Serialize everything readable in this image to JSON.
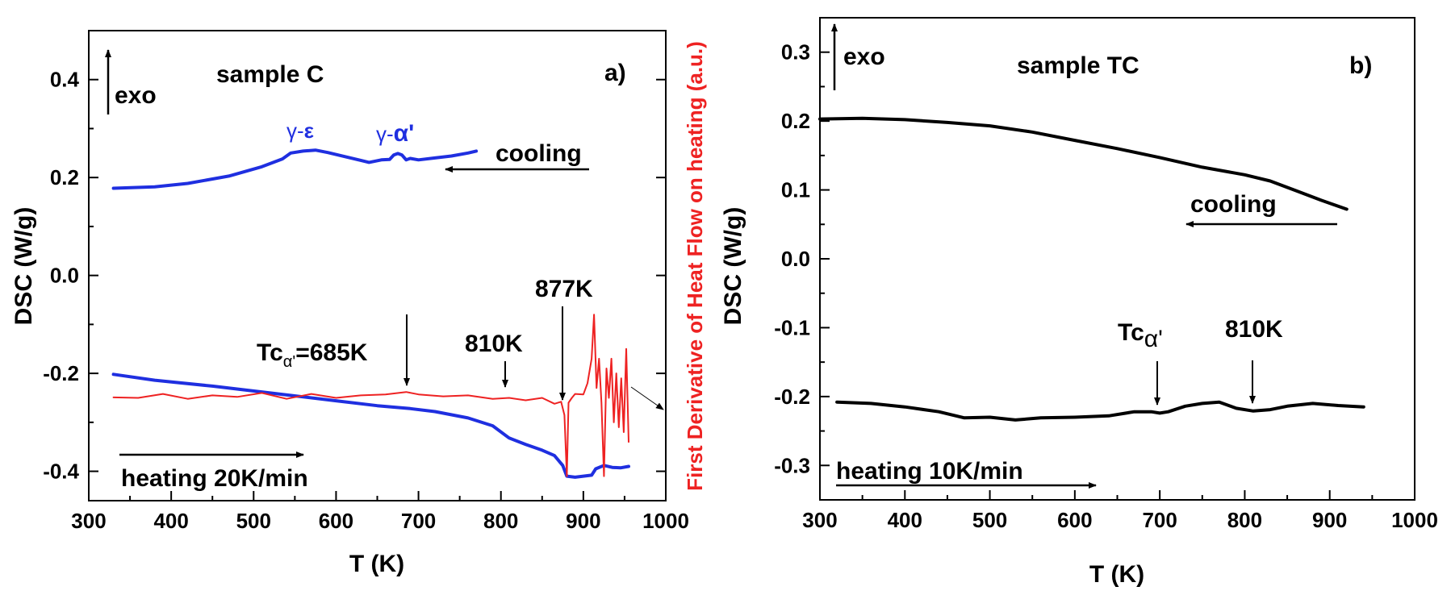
{
  "colors": {
    "blue": "#1f2fe0",
    "red": "#ee2222",
    "black": "#000000"
  },
  "chart_data": [
    {
      "type": "line",
      "panel_label": "a)",
      "title": "sample C",
      "xlabel": "T (K)",
      "ylabel": "DSC (W/g)",
      "ylabel_right": "First Derivative of Heat Flow on heating (a.u.)",
      "xlim": [
        300,
        1000
      ],
      "ylim": [
        -0.46,
        0.5
      ],
      "xticks": [
        "300",
        "400",
        "500",
        "600",
        "700",
        "800",
        "900",
        "1000"
      ],
      "yticks": [
        "0.4",
        "0.2",
        "0.0",
        "-0.2",
        "-0.4"
      ],
      "series": [
        {
          "name": "cooling",
          "color": "#1f2fe0",
          "x": [
            330,
            380,
            420,
            470,
            510,
            535,
            545,
            560,
            575,
            590,
            610,
            630,
            640,
            655,
            665,
            670,
            675,
            680,
            685,
            690,
            700,
            720,
            740,
            760,
            770
          ],
          "y": [
            0.178,
            0.181,
            0.188,
            0.203,
            0.222,
            0.238,
            0.25,
            0.254,
            0.256,
            0.251,
            0.243,
            0.235,
            0.231,
            0.236,
            0.237,
            0.246,
            0.249,
            0.246,
            0.236,
            0.239,
            0.236,
            0.24,
            0.244,
            0.25,
            0.254
          ]
        },
        {
          "name": "heating",
          "color": "#1f2fe0",
          "x": [
            330,
            380,
            450,
            520,
            600,
            650,
            690,
            720,
            760,
            790,
            810,
            830,
            850,
            865,
            875,
            880,
            890,
            910,
            915,
            925,
            935,
            945,
            955
          ],
          "y": [
            -0.202,
            -0.214,
            -0.226,
            -0.24,
            -0.256,
            -0.266,
            -0.272,
            -0.278,
            -0.291,
            -0.307,
            -0.332,
            -0.345,
            -0.357,
            -0.368,
            -0.388,
            -0.41,
            -0.412,
            -0.408,
            -0.395,
            -0.388,
            -0.392,
            -0.393,
            -0.39
          ]
        },
        {
          "name": "first derivative",
          "color": "#ee2222",
          "x": [
            330,
            360,
            390,
            420,
            450,
            480,
            510,
            540,
            570,
            600,
            630,
            660,
            685,
            700,
            730,
            760,
            790,
            810,
            830,
            850,
            865,
            873,
            877,
            880,
            882,
            886,
            890,
            900,
            905,
            910,
            913,
            916,
            919,
            922,
            925,
            928,
            931,
            934,
            937,
            940,
            943,
            946,
            949,
            952,
            955
          ],
          "y": [
            -0.249,
            -0.25,
            -0.242,
            -0.252,
            -0.245,
            -0.248,
            -0.24,
            -0.252,
            -0.242,
            -0.25,
            -0.245,
            -0.243,
            -0.238,
            -0.243,
            -0.247,
            -0.245,
            -0.252,
            -0.25,
            -0.255,
            -0.25,
            -0.262,
            -0.258,
            -0.285,
            -0.41,
            -0.26,
            -0.25,
            -0.242,
            -0.243,
            -0.22,
            -0.17,
            -0.08,
            -0.23,
            -0.17,
            -0.26,
            -0.41,
            -0.19,
            -0.25,
            -0.17,
            -0.3,
            -0.2,
            -0.31,
            -0.21,
            -0.32,
            -0.15,
            -0.34
          ]
        }
      ],
      "annotations": {
        "exo": "exo",
        "cooling": "cooling",
        "heating": "heating 20K/min",
        "tc": "Tc",
        "tc_sub": "α'",
        "tc_value": "=685K",
        "t810": "810K",
        "t877": "877K",
        "gamma_eps_prefix": "γ-",
        "gamma_eps_phase": "ε",
        "gamma_alpha_prefix": "γ-",
        "gamma_alpha_phase": "α'"
      }
    },
    {
      "type": "line",
      "panel_label": "b)",
      "title": "sample TC",
      "xlabel": "T (K)",
      "ylabel": "DSC (W/g)",
      "xlim": [
        300,
        1000
      ],
      "ylim": [
        -0.35,
        0.35
      ],
      "xticks": [
        "300",
        "400",
        "500",
        "600",
        "700",
        "800",
        "900",
        "1000"
      ],
      "yticks": [
        "0.3",
        "0.2",
        "0.1",
        "0.0",
        "-0.1",
        "-0.2",
        "-0.3"
      ],
      "series": [
        {
          "name": "cooling",
          "color": "#000000",
          "x": [
            300,
            350,
            400,
            450,
            500,
            550,
            600,
            650,
            700,
            750,
            800,
            830,
            860,
            890,
            920
          ],
          "y": [
            0.203,
            0.204,
            0.202,
            0.198,
            0.193,
            0.184,
            0.172,
            0.16,
            0.147,
            0.133,
            0.122,
            0.113,
            0.099,
            0.085,
            0.072
          ]
        },
        {
          "name": "heating",
          "color": "#000000",
          "x": [
            320,
            360,
            400,
            440,
            470,
            500,
            530,
            560,
            600,
            640,
            670,
            690,
            700,
            710,
            730,
            750,
            770,
            790,
            810,
            830,
            850,
            880,
            910,
            940
          ],
          "y": [
            -0.208,
            -0.21,
            -0.215,
            -0.222,
            -0.231,
            -0.23,
            -0.234,
            -0.231,
            -0.23,
            -0.228,
            -0.222,
            -0.222,
            -0.224,
            -0.222,
            -0.214,
            -0.21,
            -0.208,
            -0.217,
            -0.221,
            -0.219,
            -0.214,
            -0.21,
            -0.213,
            -0.215
          ]
        }
      ],
      "annotations": {
        "exo": "exo",
        "cooling": "cooling",
        "heating": "heating 10K/min",
        "tc": "Tc",
        "tc_sub": "α'",
        "t810": "810K"
      }
    }
  ]
}
